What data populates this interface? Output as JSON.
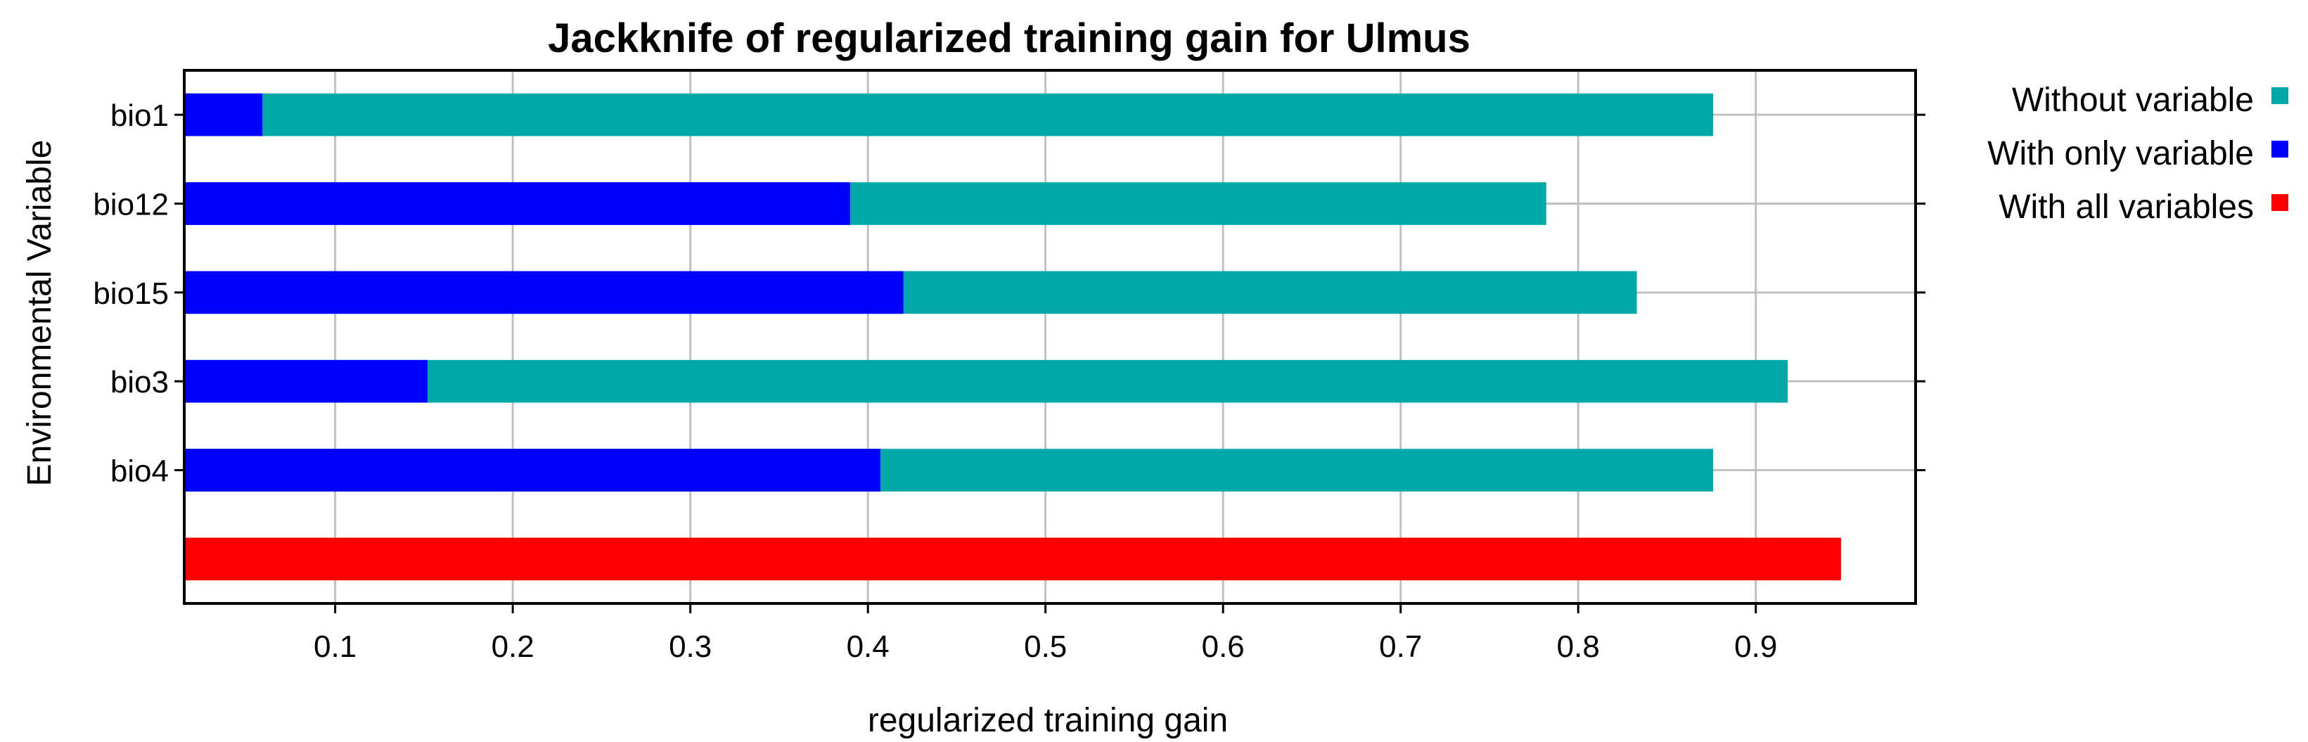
{
  "chart_data": {
    "type": "bar",
    "orientation": "horizontal",
    "title": "Jackknife of regularized training gain for Ulmus",
    "xlabel": "regularized training gain",
    "ylabel": "Environmental Variable",
    "categories": [
      "bio1",
      "bio12",
      "bio15",
      "bio3",
      "bio4"
    ],
    "series": [
      {
        "name": "Without variable",
        "color": "#00a8a8",
        "values": [
          0.876,
          0.782,
          0.833,
          0.918,
          0.876
        ]
      },
      {
        "name": "With only variable",
        "color": "#0000ff",
        "values": [
          0.059,
          0.39,
          0.42,
          0.152,
          0.407
        ]
      }
    ],
    "all_variables": {
      "name": "With all variables",
      "color": "#ff0000",
      "value": 0.948
    },
    "xlim": [
      0.015,
      0.99
    ],
    "xticks": [
      0.1,
      0.2,
      0.3,
      0.4,
      0.5,
      0.6,
      0.7,
      0.8,
      0.9
    ],
    "grid": true,
    "legend_position": "top-right"
  }
}
